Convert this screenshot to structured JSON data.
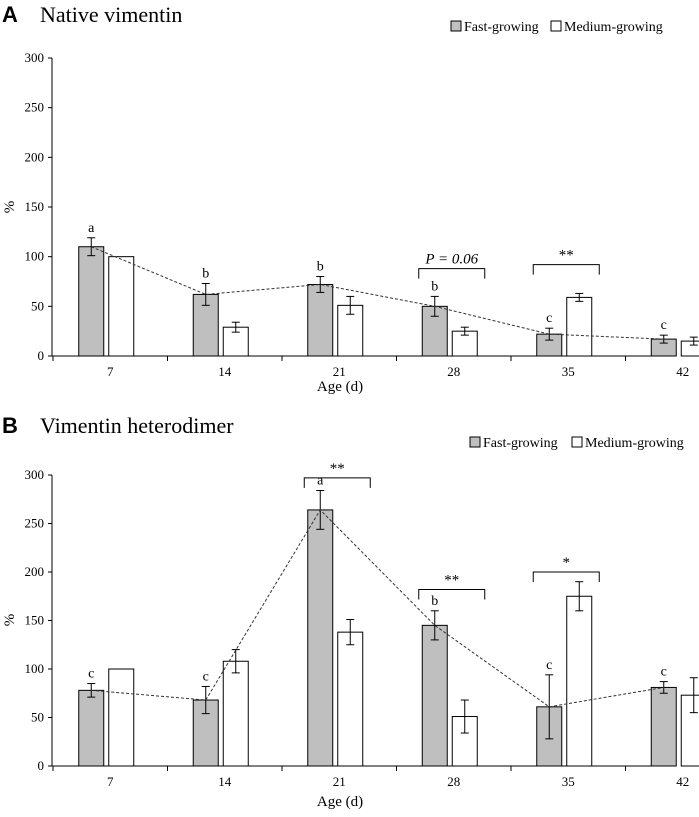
{
  "chart_data": [
    {
      "type": "bar",
      "panel_letter": "A",
      "title": "Native vimentin",
      "xlabel": "Age (d)",
      "ylabel": "%",
      "ylim": [
        0,
        300
      ],
      "yticks": [
        0,
        50,
        100,
        150,
        200,
        250,
        300
      ],
      "categories": [
        "7",
        "14",
        "21",
        "28",
        "35",
        "42"
      ],
      "series": [
        {
          "name": "Fast-growing",
          "color": "#bfbfbf",
          "values": [
            110,
            62,
            72,
            50,
            22,
            17
          ],
          "errors": [
            9,
            11,
            8,
            10,
            6,
            4
          ]
        },
        {
          "name": "Medium-growing",
          "color": "#ffffff",
          "values": [
            100,
            29,
            51,
            25,
            59,
            15
          ],
          "errors": [
            0,
            5,
            9,
            4,
            4,
            4
          ]
        }
      ],
      "letters": [
        "a",
        "b",
        "b",
        "b",
        "c",
        "c"
      ],
      "trend_series": "Fast-growing",
      "significance": [
        {
          "category": "28",
          "label": "P = 0.06",
          "italic": true,
          "bracket_top": 88
        },
        {
          "category": "35",
          "label": "**",
          "italic": false,
          "bracket_top": 92
        }
      ]
    },
    {
      "type": "bar",
      "panel_letter": "B",
      "title": "Vimentin heterodimer",
      "xlabel": "Age (d)",
      "ylabel": "%",
      "ylim": [
        0,
        300
      ],
      "yticks": [
        0,
        50,
        100,
        150,
        200,
        250,
        300
      ],
      "categories": [
        "7",
        "14",
        "21",
        "28",
        "35",
        "42"
      ],
      "series": [
        {
          "name": "Fast-growing",
          "color": "#bfbfbf",
          "values": [
            78,
            68,
            264,
            145,
            61,
            81
          ],
          "errors": [
            7,
            14,
            20,
            15,
            33,
            6
          ]
        },
        {
          "name": "Medium-growing",
          "color": "#ffffff",
          "values": [
            100,
            108,
            138,
            51,
            175,
            73
          ],
          "errors": [
            0,
            12,
            13,
            17,
            15,
            18
          ]
        }
      ],
      "letters": [
        "c",
        "c",
        "a",
        "b",
        "c",
        "c"
      ],
      "trend_series": "Fast-growing",
      "significance": [
        {
          "category": "21",
          "label": "**",
          "italic": false,
          "bracket_top": 297
        },
        {
          "category": "28",
          "label": "**",
          "italic": false,
          "bracket_top": 182
        },
        {
          "category": "35",
          "label": "*",
          "italic": false,
          "bracket_top": 200
        }
      ]
    }
  ]
}
